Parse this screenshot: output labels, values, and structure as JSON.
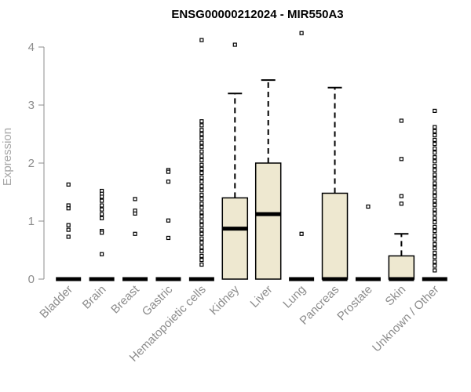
{
  "chart_data": {
    "type": "box",
    "title": "ENSG00000212024 - MIR550A3",
    "ylabel": "Expression",
    "xlabel": "",
    "ylim": [
      0,
      4.3
    ],
    "yticks": [
      0,
      1,
      2,
      3,
      4
    ],
    "grid": false,
    "box_fill": "#eee8d0",
    "categories": [
      "Bladder",
      "Brain",
      "Breast",
      "Gastric",
      "Hematopoietic cells",
      "Kidney",
      "Liver",
      "Lung",
      "Pancreas",
      "Prostate",
      "Skin",
      "Unknown / Other"
    ],
    "boxes": [
      {
        "q1": 0,
        "median": 0,
        "q3": 0,
        "whisker_low": 0,
        "whisker_high": 0,
        "outliers": [
          1.63,
          1.27,
          1.22,
          0.93,
          0.85,
          0.73
        ]
      },
      {
        "q1": 0,
        "median": 0,
        "q3": 0,
        "whisker_low": 0,
        "whisker_high": 0,
        "outliers": [
          1.52,
          1.47,
          1.42,
          1.35,
          1.27,
          1.2,
          1.12,
          1.05,
          0.83,
          0.8,
          0.43
        ]
      },
      {
        "q1": 0,
        "median": 0,
        "q3": 0,
        "whisker_low": 0,
        "whisker_high": 0,
        "outliers": [
          1.38,
          1.18,
          1.13,
          0.78
        ]
      },
      {
        "q1": 0,
        "median": 0,
        "q3": 0,
        "whisker_low": 0,
        "whisker_high": 0,
        "outliers": [
          1.88,
          1.85,
          1.68,
          1.01,
          0.71
        ]
      },
      {
        "q1": 0,
        "median": 0,
        "q3": 0,
        "whisker_low": 0,
        "whisker_high": 0,
        "outliers": [
          4.12,
          2.72,
          2.65,
          2.57,
          2.5,
          2.43,
          2.35,
          2.28,
          2.2,
          2.12,
          2.05,
          1.97,
          1.9,
          1.83,
          1.75,
          1.68,
          1.6,
          1.53,
          1.45,
          1.38,
          1.3,
          1.23,
          1.15,
          1.08,
          1.0,
          0.93,
          0.85,
          0.78,
          0.7,
          0.63,
          0.55,
          0.48,
          0.4,
          0.33,
          0.25
        ]
      },
      {
        "q1": 0,
        "median": 0.87,
        "q3": 1.4,
        "whisker_low": 0,
        "whisker_high": 3.2,
        "outliers": [
          4.04
        ]
      },
      {
        "q1": 0,
        "median": 1.12,
        "q3": 2.0,
        "whisker_low": 0,
        "whisker_high": 3.43,
        "outliers": []
      },
      {
        "q1": 0,
        "median": 0,
        "q3": 0,
        "whisker_low": 0,
        "whisker_high": 0,
        "outliers": [
          4.24,
          0.78
        ]
      },
      {
        "q1": 0,
        "median": 0,
        "q3": 1.48,
        "whisker_low": 0,
        "whisker_high": 3.3,
        "outliers": []
      },
      {
        "q1": 0,
        "median": 0,
        "q3": 0,
        "whisker_low": 0,
        "whisker_high": 0,
        "outliers": [
          1.25
        ]
      },
      {
        "q1": 0,
        "median": 0,
        "q3": 0.4,
        "whisker_low": 0,
        "whisker_high": 0.78,
        "outliers": [
          2.73,
          2.07,
          1.43,
          1.3
        ]
      },
      {
        "q1": 0,
        "median": 0,
        "q3": 0,
        "whisker_low": 0,
        "whisker_high": 0,
        "outliers": [
          2.9,
          2.62,
          2.55,
          2.48,
          2.4,
          2.33,
          2.25,
          2.18,
          2.1,
          2.03,
          1.95,
          1.88,
          1.8,
          1.73,
          1.65,
          1.58,
          1.5,
          1.43,
          1.35,
          1.28,
          1.2,
          1.13,
          1.05,
          0.98,
          0.9,
          0.83,
          0.75,
          0.68,
          0.6,
          0.53,
          0.45,
          0.38,
          0.3,
          0.23,
          0.15
        ]
      }
    ]
  }
}
